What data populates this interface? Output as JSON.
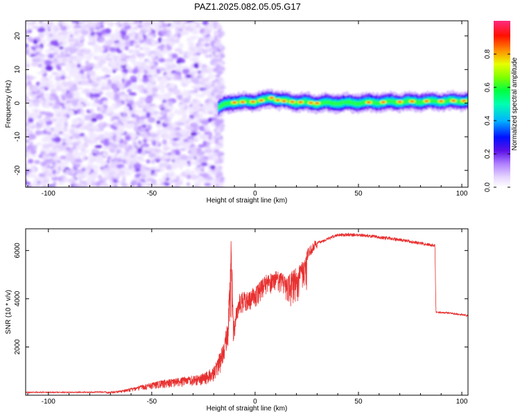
{
  "figure": {
    "title": "PAZ1.2025.082.05.05.G17"
  },
  "chart_data": [
    {
      "type": "heatmap",
      "name": "spectrogram",
      "xlabel": "Height of straight line (km)",
      "ylabel": "Frequency (Hz)",
      "xlim": [
        -111,
        103
      ],
      "ylim": [
        -25,
        24.5
      ],
      "xticks": [
        "-100",
        "-50",
        "0",
        "50",
        "100"
      ],
      "xtick_values": [
        -100,
        -50,
        0,
        50,
        100
      ],
      "yticks": [
        "20",
        "10",
        "0",
        "-10",
        "-20"
      ],
      "ytick_values": [
        20,
        10,
        0,
        -10,
        -20
      ],
      "colorbar": {
        "label": "Normalized spectral amplitude",
        "ticks": [
          "0.0",
          "0.2",
          "0.4",
          "0.6",
          "0.8"
        ],
        "tick_values": [
          0.0,
          0.2,
          0.4,
          0.6,
          0.8
        ],
        "range": [
          0,
          1
        ],
        "colormap": [
          "#ffffff",
          "#d8c0ff",
          "#a060ff",
          "#6a00e0",
          "#0000ff",
          "#00c8ff",
          "#00ff80",
          "#40ff00",
          "#e0ff00",
          "#ff8000",
          "#ff0000",
          "#ff2080"
        ]
      },
      "noise_region": {
        "x": [
          -111,
          -17
        ],
        "amplitude": 0.05
      },
      "signal_band": {
        "x": [
          -18,
          103
        ],
        "center_frequency": [
          [
            -18,
            -1.5
          ],
          [
            -15,
            -0.5
          ],
          [
            -12,
            0.2
          ],
          [
            -5,
            0.3
          ],
          [
            0,
            0.5
          ],
          [
            5,
            1.0
          ],
          [
            8,
            1.5
          ],
          [
            12,
            0.8
          ],
          [
            20,
            0.3
          ],
          [
            30,
            0.0
          ],
          [
            50,
            0.1
          ],
          [
            70,
            0.4
          ],
          [
            103,
            0.7
          ]
        ],
        "halfwidth_hz": 1.3,
        "peak_amplitude": 0.95
      },
      "grid": false
    },
    {
      "type": "line",
      "name": "snr",
      "xlabel": "Height of straight line (km)",
      "ylabel": "SNR (10 * v/v)",
      "xlim": [
        -111,
        103
      ],
      "ylim": [
        0,
        6900
      ],
      "xticks": [
        "-100",
        "-50",
        "0",
        "50",
        "100"
      ],
      "xtick_values": [
        -100,
        -50,
        0,
        50,
        100
      ],
      "yticks": [
        "2000",
        "4000",
        "6000"
      ],
      "ytick_values": [
        2000,
        4000,
        6000
      ],
      "color": "#e83030",
      "envelope": [
        [
          -111,
          120
        ],
        [
          -80,
          120
        ],
        [
          -70,
          140
        ],
        [
          -62,
          250
        ],
        [
          -55,
          420
        ],
        [
          -45,
          620
        ],
        [
          -35,
          750
        ],
        [
          -25,
          900
        ],
        [
          -20,
          1200
        ],
        [
          -15,
          2200
        ],
        [
          -13,
          3500
        ],
        [
          -11.5,
          6900
        ],
        [
          -10.5,
          3000
        ],
        [
          -8,
          4200
        ],
        [
          0,
          4500
        ],
        [
          5,
          5000
        ],
        [
          10,
          5200
        ],
        [
          15,
          5000
        ],
        [
          20,
          5300
        ],
        [
          25,
          5800
        ],
        [
          30,
          6300
        ],
        [
          40,
          6650
        ],
        [
          50,
          6650
        ],
        [
          60,
          6550
        ],
        [
          70,
          6450
        ],
        [
          80,
          6300
        ],
        [
          87,
          6200
        ],
        [
          87.5,
          3450
        ],
        [
          95,
          3400
        ],
        [
          103,
          3300
        ]
      ],
      "grid": false
    }
  ]
}
